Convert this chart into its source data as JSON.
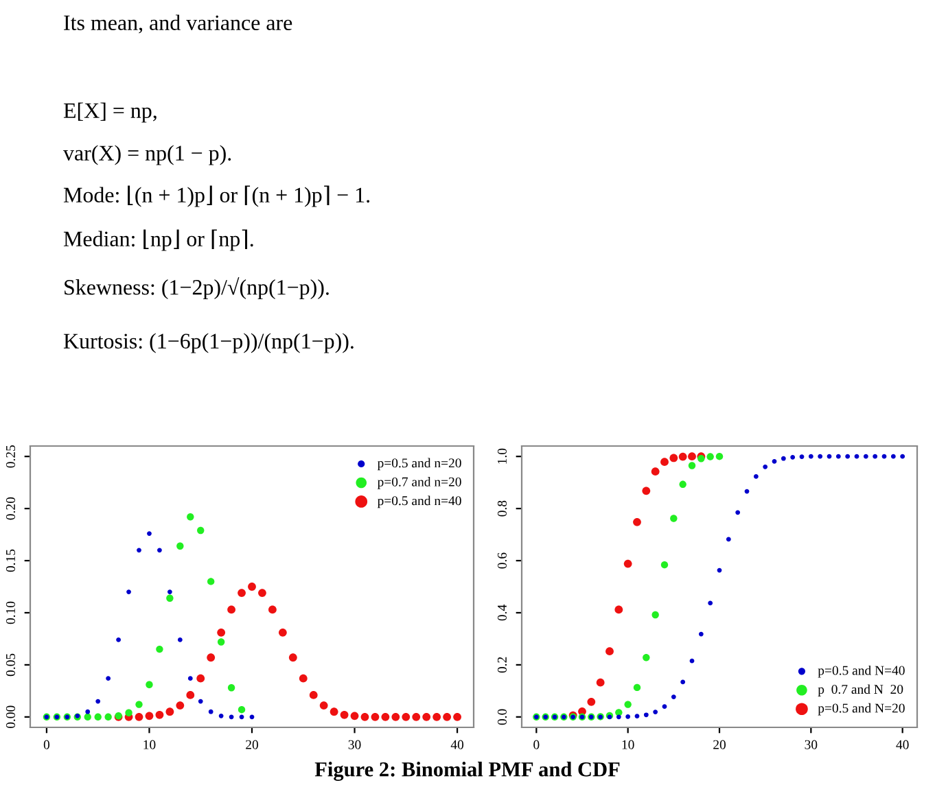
{
  "chart_data": [
    {
      "type": "other",
      "annotations": [
        "Its mean, and variance are",
        "E[X] = np,",
        "var(X) = np(1 − p).",
        "Mode: ⌊(n + 1)p⌋ or ⌈(n + 1)p⌉ − 1.",
        "Median: ⌊np⌋ or ⌈np⌉.",
        "Skewness: (1−2p)/√(np(1−p)).",
        "Kurtosis: (1−6p(1−p))/(np(1−p))."
      ]
    },
    {
      "type": "scatter",
      "xlim": [
        -1.6,
        41.6
      ],
      "ylim": [
        -0.01,
        0.26
      ],
      "xticks": [
        0,
        10,
        20,
        30,
        40
      ],
      "yticks": [
        {
          "value": 0,
          "label": "0.00"
        },
        {
          "value": 0.05,
          "label": "0.05"
        },
        {
          "value": 0.1,
          "label": "0.10"
        },
        {
          "value": 0.15,
          "label": "0.15"
        },
        {
          "value": 0.2,
          "label": "0.20"
        },
        {
          "value": 0.25,
          "label": "0.25"
        }
      ],
      "legend": "top right",
      "marker": "circle",
      "grid": false,
      "series": [
        {
          "name": "p=0.5 and n=20",
          "color": "#0000cc",
          "x": [
            0,
            1,
            2,
            3,
            4,
            5,
            6,
            7,
            8,
            9,
            10,
            11,
            12,
            13,
            14,
            15,
            16,
            17,
            18,
            19,
            20
          ],
          "values": [
            0,
            0,
            0,
            0.001,
            0.005,
            0.015,
            0.037,
            0.074,
            0.12,
            0.16,
            0.176,
            0.16,
            0.12,
            0.074,
            0.037,
            0.015,
            0.005,
            0.001,
            0,
            0,
            0
          ]
        },
        {
          "name": "p=0.7 and n=20",
          "color": "#22ee22",
          "x": [
            0,
            1,
            2,
            3,
            4,
            5,
            6,
            7,
            8,
            9,
            10,
            11,
            12,
            13,
            14,
            15,
            16,
            17,
            18,
            19
          ],
          "values": [
            0,
            0,
            0,
            0,
            0,
            0,
            0,
            0.001,
            0.004,
            0.012,
            0.031,
            0.065,
            0.114,
            0.164,
            0.192,
            0.179,
            0.13,
            0.072,
            0.028,
            0.007
          ]
        },
        {
          "name": "p=0.5 and n=40",
          "color": "#ee1111",
          "x": [
            7,
            8,
            9,
            10,
            11,
            12,
            13,
            14,
            15,
            16,
            17,
            18,
            19,
            20,
            21,
            22,
            23,
            24,
            25,
            26,
            27,
            28,
            29,
            30,
            31,
            32,
            33,
            34,
            35,
            36,
            37,
            38,
            39,
            40
          ],
          "values": [
            0,
            0,
            0,
            0.001,
            0.002,
            0.005,
            0.011,
            0.021,
            0.037,
            0.057,
            0.081,
            0.103,
            0.119,
            0.125,
            0.119,
            0.103,
            0.081,
            0.057,
            0.037,
            0.021,
            0.011,
            0.005,
            0.002,
            0.001,
            0,
            0,
            0,
            0,
            0,
            0,
            0,
            0,
            0,
            0
          ]
        }
      ]
    },
    {
      "type": "scatter",
      "xlim": [
        -1.6,
        41.6
      ],
      "ylim": [
        -0.04,
        1.04
      ],
      "xticks": [
        0,
        10,
        20,
        30,
        40
      ],
      "yticks": [
        {
          "value": 0,
          "label": "0.0"
        },
        {
          "value": 0.2,
          "label": "0.2"
        },
        {
          "value": 0.4,
          "label": "0.4"
        },
        {
          "value": 0.6,
          "label": "0.6"
        },
        {
          "value": 0.8,
          "label": "0.8"
        },
        {
          "value": 1,
          "label": "1.0"
        }
      ],
      "legend": "bottom right",
      "marker": "circle",
      "grid": false,
      "series": [
        {
          "name": "p=0.5 and N=40",
          "color": "#0000cc",
          "x": [
            0,
            1,
            2,
            3,
            4,
            5,
            6,
            7,
            8,
            9,
            10,
            11,
            12,
            13,
            14,
            15,
            16,
            17,
            18,
            19,
            20,
            21,
            22,
            23,
            24,
            25,
            26,
            27,
            28,
            29,
            30,
            31,
            32,
            33,
            34,
            35,
            36,
            37,
            38,
            39,
            40
          ],
          "values": [
            0,
            0,
            0,
            0,
            0,
            0,
            0,
            0,
            0,
            0,
            0.001,
            0.003,
            0.008,
            0.019,
            0.04,
            0.077,
            0.134,
            0.215,
            0.318,
            0.437,
            0.563,
            0.682,
            0.785,
            0.866,
            0.923,
            0.96,
            0.981,
            0.992,
            0.997,
            0.999,
            1,
            1,
            1,
            1,
            1,
            1,
            1,
            1,
            1,
            1,
            1
          ]
        },
        {
          "name": "p  0.7 and N  20",
          "color": "#22ee22",
          "x": [
            0,
            1,
            2,
            3,
            4,
            5,
            6,
            7,
            8,
            9,
            10,
            11,
            12,
            13,
            14,
            15,
            16,
            17,
            18,
            19,
            20
          ],
          "values": [
            0,
            0,
            0,
            0,
            0,
            0,
            0,
            0.001,
            0.005,
            0.017,
            0.048,
            0.113,
            0.228,
            0.392,
            0.584,
            0.762,
            0.893,
            0.965,
            0.992,
            0.999,
            1
          ]
        },
        {
          "name": "p=0.5 and N=20",
          "color": "#ee1111",
          "x": [
            4,
            5,
            6,
            7,
            8,
            9,
            10,
            11,
            12,
            13,
            14,
            15,
            16,
            17,
            18
          ],
          "values": [
            0.006,
            0.021,
            0.058,
            0.132,
            0.252,
            0.412,
            0.588,
            0.748,
            0.868,
            0.942,
            0.979,
            0.994,
            0.999,
            1,
            1
          ]
        }
      ]
    },
    {
      "type": "other",
      "annotations": [
        "Figure 2: Binomial PMF and CDF"
      ]
    }
  ]
}
